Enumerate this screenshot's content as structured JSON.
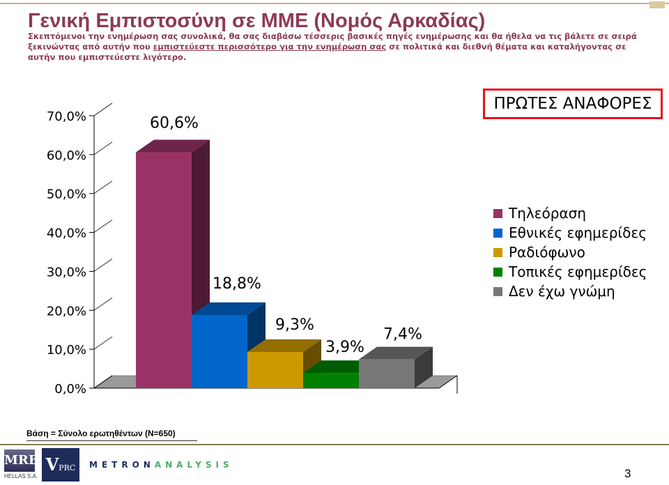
{
  "header": {
    "title": "Γενική Εμπιστοσύνη σε ΜΜΕ (Νομός Αρκαδίας)",
    "subtitle_part1": "Σκεπτόμενοι την ενημέρωση σας συνολικά, θα σας διαβάσω τέσσερις βασικές πηγές ενημέρωσης και θα ήθελα να τις βάλετε σε σειρά ξεκινώντας από αυτήν που ",
    "subtitle_underlined": "εμπιστεύεστε περισσότερο για την ενημέρωση σας",
    "subtitle_part2": " σε πολιτικά και διεθνή θέματα και καταλήγοντας σε αυτήν που εμπιστεύεστε λιγότερο."
  },
  "badge": "ΠΡΩΤΕΣ ΑΝΑΦΟΡΕΣ",
  "chart_data": {
    "type": "bar",
    "categories": [
      "Τηλεόραση",
      "Εθνικές εφημερίδες",
      "Ραδιόφωνο",
      "Τοπικές εφημερίδες",
      "Δεν έχω γνώμη"
    ],
    "values": [
      60.6,
      18.8,
      9.3,
      3.9,
      7.4
    ],
    "value_labels": [
      "60,6%",
      "18,8%",
      "9,3%",
      "3,9%",
      "7,4%"
    ],
    "colors": [
      "#993366",
      "#0066cc",
      "#cc9900",
      "#008000",
      "#777777"
    ],
    "ylim": [
      0,
      70
    ],
    "yticks": [
      0,
      10,
      20,
      30,
      40,
      50,
      60,
      70
    ],
    "ytick_labels": [
      "0,0%",
      "10,0%",
      "20,0%",
      "30,0%",
      "40,0%",
      "50,0%",
      "60,0%",
      "70,0%"
    ],
    "legend_position": "right",
    "style": "3d"
  },
  "legend": {
    "items": [
      {
        "label": "Τηλεόραση",
        "color": "#993366"
      },
      {
        "label": "Εθνικές εφημερίδες",
        "color": "#0066cc"
      },
      {
        "label": "Ραδιόφωνο",
        "color": "#cc9900"
      },
      {
        "label": "Τοπικές εφημερίδες",
        "color": "#008000"
      },
      {
        "label": "Δεν έχω γνώμη",
        "color": "#777777"
      }
    ]
  },
  "footer": {
    "base": "Βάση = Σύνολο ερωτηθέντων (N=650)",
    "logo_mrb": "MRB",
    "logo_mrb_sub": "HELLAS S.A.",
    "logo_vprc_v": "V",
    "logo_vprc_rest": "PRC",
    "logo_metron_a": "METRON",
    "logo_metron_b": "ANALYSIS",
    "page_number": "3"
  }
}
